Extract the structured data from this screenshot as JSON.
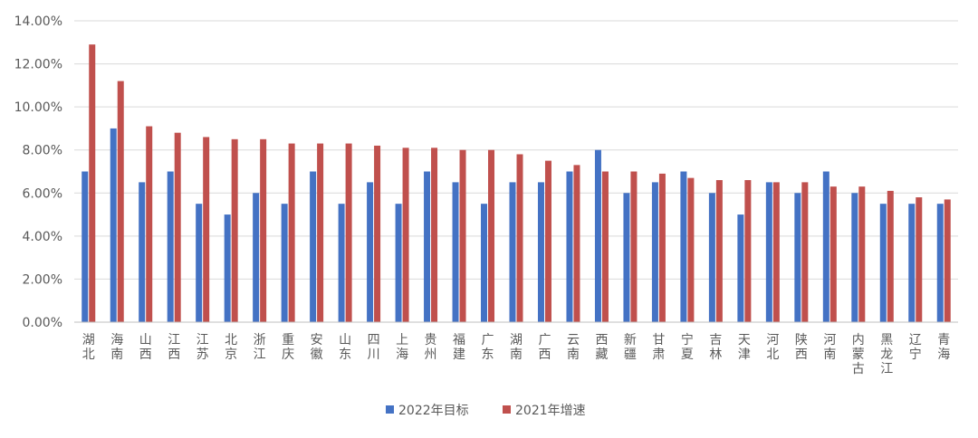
{
  "chart_data": {
    "type": "bar",
    "categories": [
      "湖北",
      "海南",
      "山西",
      "江西",
      "江苏",
      "北京",
      "浙江",
      "重庆",
      "安徽",
      "山东",
      "四川",
      "上海",
      "贵州",
      "福建",
      "广东",
      "湖南",
      "广西",
      "云南",
      "西藏",
      "新疆",
      "甘肃",
      "宁夏",
      "吉林",
      "天津",
      "河北",
      "陕西",
      "河南",
      "内蒙古",
      "黑龙江",
      "辽宁",
      "青海"
    ],
    "series": [
      {
        "name": "2022年目标",
        "color": "#4472C4",
        "values": [
          7.0,
          9.0,
          6.5,
          7.0,
          5.5,
          5.0,
          6.0,
          5.5,
          7.0,
          5.5,
          6.5,
          5.5,
          7.0,
          6.5,
          5.5,
          6.5,
          6.5,
          7.0,
          8.0,
          6.0,
          6.5,
          7.0,
          6.0,
          5.0,
          6.5,
          6.0,
          7.0,
          6.0,
          5.5,
          5.5,
          5.5
        ]
      },
      {
        "name": "2021年增速",
        "color": "#C0504D",
        "values": [
          12.9,
          11.2,
          9.1,
          8.8,
          8.6,
          8.5,
          8.5,
          8.3,
          8.3,
          8.3,
          8.2,
          8.1,
          8.1,
          8.0,
          8.0,
          7.8,
          7.5,
          7.3,
          7.0,
          7.0,
          6.9,
          6.7,
          6.6,
          6.6,
          6.5,
          6.5,
          6.3,
          6.3,
          6.1,
          5.8,
          5.7
        ]
      }
    ],
    "yticks": [
      "0.00%",
      "2.00%",
      "4.00%",
      "6.00%",
      "8.00%",
      "10.00%",
      "12.00%",
      "14.00%"
    ],
    "ylim": [
      0,
      14
    ],
    "unit": "%",
    "grid": true,
    "legend_position": "bottom",
    "title": "",
    "xlabel": "",
    "ylabel": ""
  }
}
